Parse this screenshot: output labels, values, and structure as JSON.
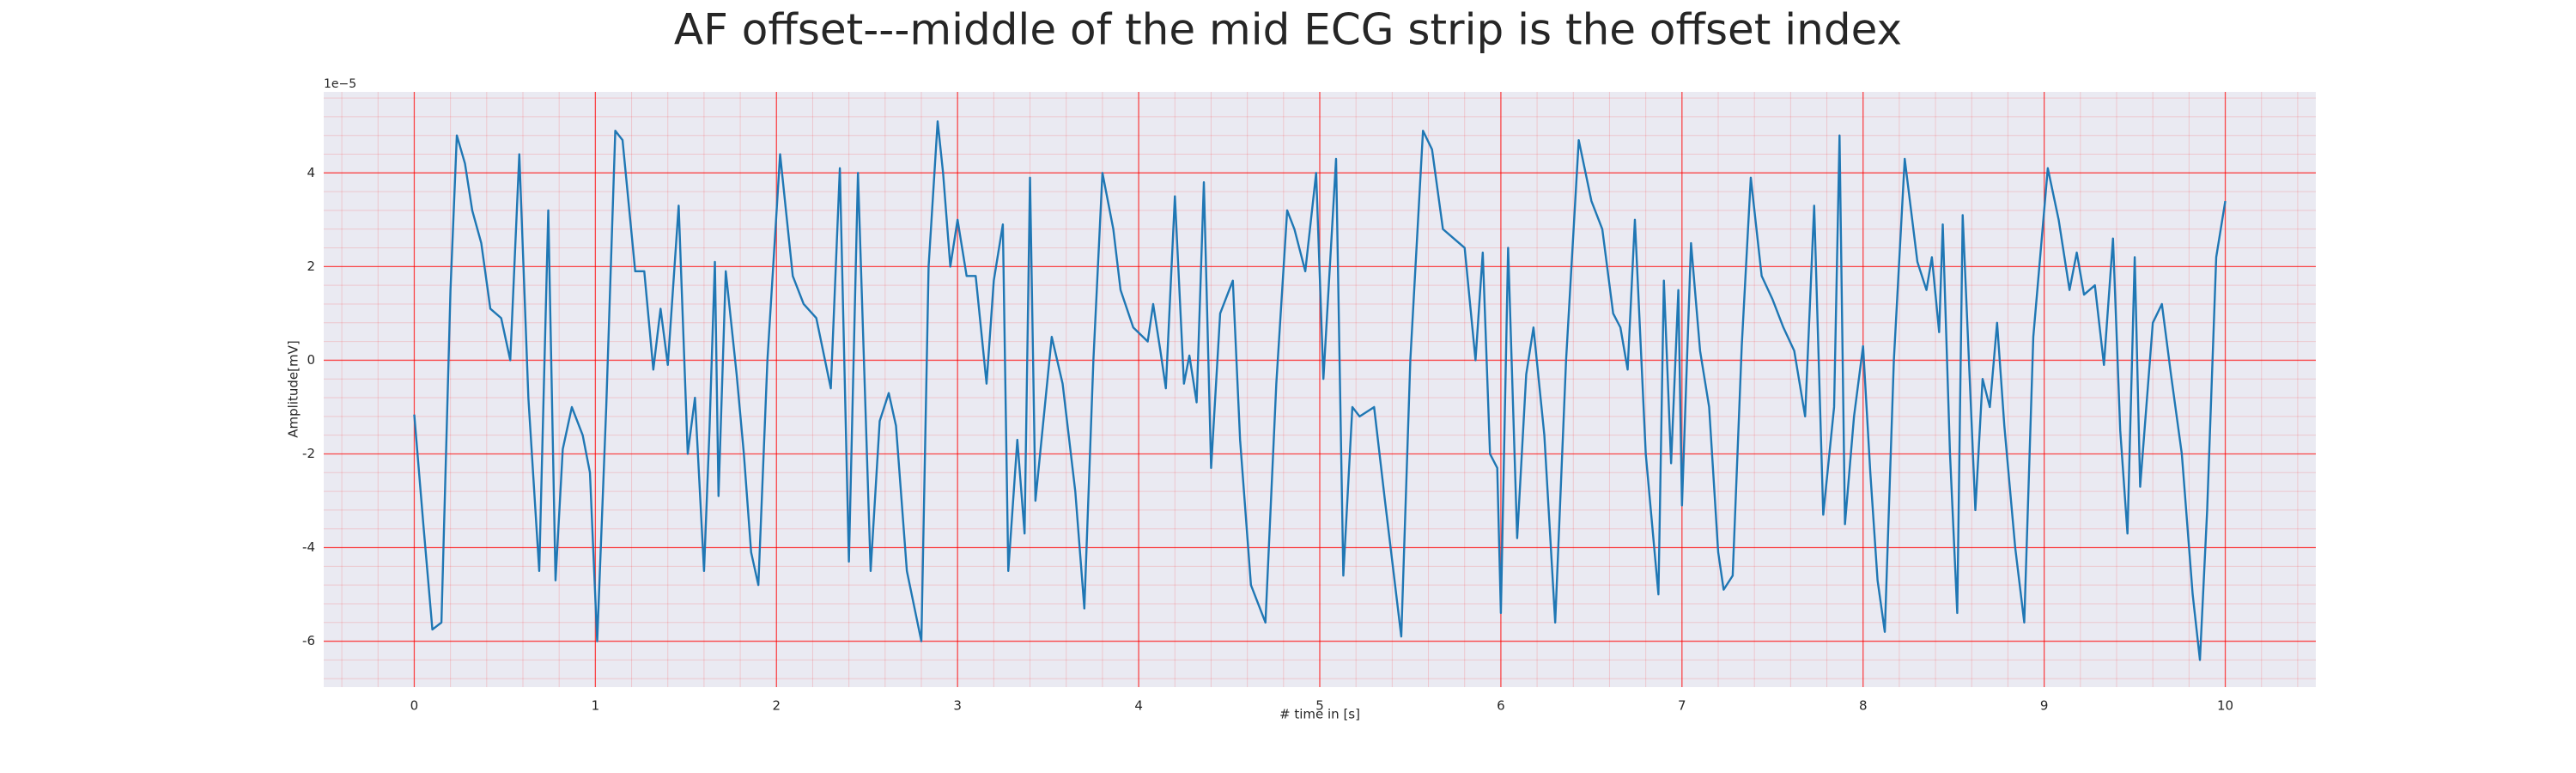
{
  "chart_data": {
    "type": "line",
    "title": "AF offset---middle of the mid ECG strip is the offset index",
    "xlabel": "# time in [s]",
    "ylabel": "Amplitude[mV]",
    "y_offset_label": "1e−5",
    "x": [
      0,
      0.05,
      0.1,
      0.15,
      0.2,
      0.235,
      0.28,
      0.32,
      0.37,
      0.42,
      0.48,
      0.53,
      0.58,
      0.63,
      0.69,
      0.74,
      0.78,
      0.82,
      0.87,
      0.93,
      0.97,
      1.01,
      1.06,
      1.11,
      1.15,
      1.22,
      1.27,
      1.32,
      1.36,
      1.4,
      1.46,
      1.51,
      1.55,
      1.6,
      1.63,
      1.66,
      1.68,
      1.72,
      1.78,
      1.82,
      1.86,
      1.9,
      1.95,
      2.02,
      2.09,
      2.15,
      2.22,
      2.3,
      2.35,
      2.4,
      2.45,
      2.52,
      2.57,
      2.62,
      2.66,
      2.72,
      2.8,
      2.84,
      2.89,
      2.92,
      2.96,
      3.0,
      3.05,
      3.1,
      3.16,
      3.2,
      3.25,
      3.28,
      3.33,
      3.37,
      3.4,
      3.43,
      3.52,
      3.58,
      3.65,
      3.7,
      3.75,
      3.8,
      3.86,
      3.9,
      3.97,
      4.05,
      4.08,
      4.12,
      4.15,
      4.2,
      4.25,
      4.28,
      4.32,
      4.36,
      4.4,
      4.45,
      4.52,
      4.56,
      4.62,
      4.7,
      4.76,
      4.82,
      4.86,
      4.92,
      4.98,
      5.02,
      5.09,
      5.13,
      5.18,
      5.22,
      5.3,
      5.36,
      5.45,
      5.5,
      5.57,
      5.62,
      5.68,
      5.74,
      5.8,
      5.86,
      5.9,
      5.94,
      5.98,
      6.0,
      6.04,
      6.09,
      6.14,
      6.18,
      6.24,
      6.3,
      6.36,
      6.43,
      6.5,
      6.56,
      6.62,
      6.66,
      6.7,
      6.74,
      6.8,
      6.87,
      6.9,
      6.94,
      6.98,
      7.0,
      7.05,
      7.1,
      7.15,
      7.2,
      7.23,
      7.28,
      7.33,
      7.38,
      7.44,
      7.5,
      7.56,
      7.62,
      7.68,
      7.73,
      7.78,
      7.84,
      7.87,
      7.9,
      7.95,
      8.0,
      8.04,
      8.08,
      8.12,
      8.17,
      8.23,
      8.3,
      8.35,
      8.38,
      8.42,
      8.44,
      8.48,
      8.52,
      8.55,
      8.62,
      8.66,
      8.7,
      8.74,
      8.78,
      8.84,
      8.89,
      8.94,
      9.02,
      9.08,
      9.14,
      9.18,
      9.22,
      9.28,
      9.33,
      9.38,
      9.42,
      9.46,
      9.5,
      9.53,
      9.6,
      9.65,
      9.7,
      9.76,
      9.82,
      9.86,
      9.9,
      9.95,
      10.0
    ],
    "values": [
      -1.16,
      -3.5,
      -5.75,
      -5.6,
      1.5,
      4.8,
      4.2,
      3.2,
      2.5,
      1.1,
      0.9,
      0,
      4.4,
      -0.8,
      -4.5,
      3.2,
      -4.7,
      -1.9,
      -1.0,
      -1.6,
      -2.4,
      -6.0,
      -1.0,
      4.9,
      4.7,
      1.9,
      1.9,
      -0.2,
      1.1,
      -0.1,
      3.3,
      -2.0,
      -0.8,
      -4.5,
      -1.5,
      2.1,
      -2.9,
      1.9,
      -0.3,
      -2.0,
      -4.1,
      -4.8,
      0,
      4.4,
      1.8,
      1.2,
      0.9,
      -0.6,
      4.1,
      -4.3,
      4.0,
      -4.5,
      -1.3,
      -0.7,
      -1.4,
      -4.5,
      -6.0,
      2.0,
      5.1,
      4.0,
      2.0,
      3.0,
      1.8,
      1.8,
      -0.5,
      1.7,
      2.9,
      -4.5,
      -1.7,
      -3.7,
      3.9,
      -3.0,
      0.5,
      -0.5,
      -2.8,
      -5.3,
      0,
      4.0,
      2.8,
      1.5,
      0.7,
      0.4,
      1.2,
      0.2,
      -0.6,
      3.5,
      -0.5,
      0.1,
      -0.9,
      3.8,
      -2.3,
      1.0,
      1.7,
      -1.7,
      -4.8,
      -5.6,
      -0.5,
      3.2,
      2.8,
      1.9,
      4.0,
      -0.4,
      4.3,
      -4.6,
      -1.0,
      -1.2,
      -1.0,
      -3.0,
      -5.9,
      0,
      4.9,
      4.5,
      2.8,
      2.6,
      2.4,
      0,
      2.3,
      -2.0,
      -2.3,
      -5.4,
      2.4,
      -3.8,
      -0.3,
      0.7,
      -1.6,
      -5.6,
      0,
      4.7,
      3.4,
      2.8,
      1.0,
      0.7,
      -0.2,
      3.0,
      -2.0,
      -5.0,
      1.7,
      -2.2,
      1.5,
      -3.1,
      2.5,
      0.2,
      -1.0,
      -4.1,
      -4.9,
      -4.6,
      0.3,
      3.9,
      1.8,
      1.3,
      0.7,
      0.2,
      -1.2,
      3.3,
      -3.3,
      -1.0,
      4.8,
      -3.5,
      -1.2,
      0.3,
      -2.4,
      -4.7,
      -5.8,
      0,
      4.3,
      2.1,
      1.5,
      2.2,
      0.6,
      2.9,
      -2.0,
      -5.4,
      3.1,
      -3.2,
      -0.4,
      -1.0,
      0.8,
      -1.4,
      -4.0,
      -5.6,
      0.5,
      4.1,
      3.0,
      1.5,
      2.3,
      1.4,
      1.6,
      -0.1,
      2.6,
      -1.5,
      -3.7,
      2.2,
      -2.7,
      0.8,
      1.2,
      -0.3,
      -2.0,
      -5.0,
      -6.4,
      -3.2,
      2.2,
      3.4
    ],
    "color": "#1f77b4",
    "xlim": [
      -0.5,
      10.5
    ],
    "xticks": [
      0,
      1,
      2,
      3,
      4,
      5,
      6,
      7,
      8,
      9,
      10
    ],
    "ylim": [
      -6.98,
      5.73
    ],
    "yticks": [
      -6,
      -4,
      -2,
      0,
      2,
      4
    ],
    "grid": true,
    "grid_color": "#ff0000",
    "minor_grid": true,
    "minor_divisions": 5
  }
}
